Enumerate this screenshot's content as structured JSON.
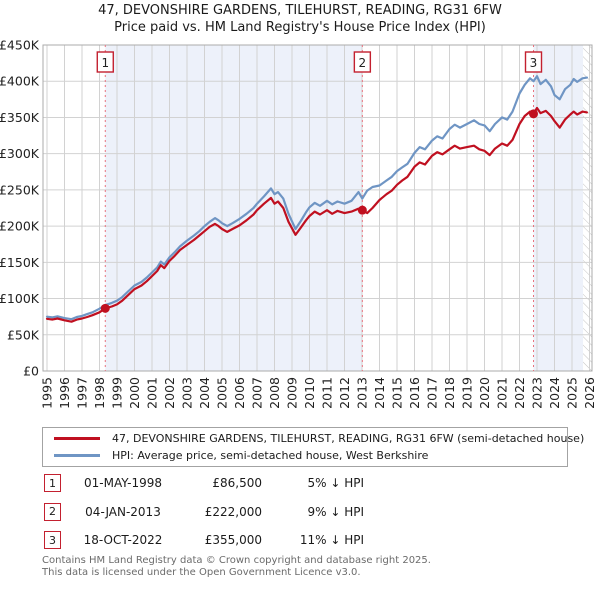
{
  "header": {
    "title_line1": "47, DEVONSHIRE GARDENS, TILEHURST, READING, RG31 6FW",
    "title_line2": "Price paid vs. HM Land Registry's House Price Index (HPI)"
  },
  "chart_data": {
    "type": "line",
    "title": "47, DEVONSHIRE GARDENS, TILEHURST, READING, RG31 6FW",
    "subtitle": "Price paid vs. HM Land Registry's House Price Index (HPI)",
    "x_axis": {
      "tick_years": [
        1995,
        1996,
        1997,
        1998,
        1999,
        2000,
        2001,
        2002,
        2003,
        2004,
        2005,
        2006,
        2007,
        2008,
        2009,
        2010,
        2011,
        2012,
        2013,
        2014,
        2015,
        2016,
        2017,
        2018,
        2019,
        2020,
        2021,
        2022,
        2023,
        2024,
        2025,
        2026
      ],
      "range": [
        1994.77,
        2026.14
      ]
    },
    "y_axis": {
      "tick_labels": [
        "£0",
        "£50K",
        "£100K",
        "£150K",
        "£200K",
        "£250K",
        "£300K",
        "£350K",
        "£400K",
        "£450K"
      ],
      "tick_values": [
        0,
        50,
        100,
        150,
        200,
        250,
        300,
        350,
        400,
        450
      ],
      "unit": "GBP thousands",
      "range": [
        0,
        450
      ],
      "grid": true
    },
    "legend_position": "bottom",
    "series": [
      {
        "id": "price-paid",
        "name": "47, DEVONSHIRE GARDENS, TILEHURST, READING, RG31 6FW (semi-detached house)",
        "color": "#c01020",
        "points": [
          [
            1995.0,
            72
          ],
          [
            1995.3,
            71
          ],
          [
            1995.6,
            72.5
          ],
          [
            1996.0,
            70
          ],
          [
            1996.4,
            68
          ],
          [
            1996.7,
            71
          ],
          [
            1997.0,
            72.5
          ],
          [
            1997.3,
            74.5
          ],
          [
            1997.6,
            77
          ],
          [
            1998.0,
            81
          ],
          [
            1998.33,
            86.5
          ],
          [
            1998.7,
            89
          ],
          [
            1999.0,
            92
          ],
          [
            1999.3,
            97
          ],
          [
            1999.6,
            104
          ],
          [
            2000.0,
            113
          ],
          [
            2000.4,
            118
          ],
          [
            2000.7,
            124
          ],
          [
            2001.0,
            131
          ],
          [
            2001.3,
            138
          ],
          [
            2001.5,
            146
          ],
          [
            2001.7,
            142
          ],
          [
            2002.0,
            152
          ],
          [
            2002.3,
            159
          ],
          [
            2002.6,
            167
          ],
          [
            2003.0,
            174
          ],
          [
            2003.4,
            181
          ],
          [
            2003.7,
            187
          ],
          [
            2004.0,
            193
          ],
          [
            2004.3,
            199
          ],
          [
            2004.6,
            203
          ],
          [
            2004.8,
            200
          ],
          [
            2005.0,
            196
          ],
          [
            2005.3,
            192
          ],
          [
            2005.6,
            196
          ],
          [
            2006.0,
            201
          ],
          [
            2006.4,
            208
          ],
          [
            2006.8,
            216
          ],
          [
            2007.0,
            222
          ],
          [
            2007.4,
            231
          ],
          [
            2007.8,
            239
          ],
          [
            2008.0,
            231
          ],
          [
            2008.2,
            234
          ],
          [
            2008.5,
            225
          ],
          [
            2008.8,
            206
          ],
          [
            2009.2,
            188
          ],
          [
            2009.5,
            198
          ],
          [
            2009.8,
            208
          ],
          [
            2010.0,
            214
          ],
          [
            2010.3,
            220
          ],
          [
            2010.6,
            216
          ],
          [
            2011.0,
            222
          ],
          [
            2011.3,
            217
          ],
          [
            2011.6,
            221
          ],
          [
            2012.0,
            218
          ],
          [
            2012.4,
            220
          ],
          [
            2012.8,
            224
          ],
          [
            2013.02,
            222
          ],
          [
            2013.3,
            218
          ],
          [
            2013.6,
            225
          ],
          [
            2014.0,
            236
          ],
          [
            2014.4,
            244
          ],
          [
            2014.7,
            249
          ],
          [
            2015.0,
            257
          ],
          [
            2015.3,
            263
          ],
          [
            2015.6,
            268
          ],
          [
            2016.0,
            282
          ],
          [
            2016.3,
            288
          ],
          [
            2016.6,
            285
          ],
          [
            2017.0,
            297
          ],
          [
            2017.3,
            302
          ],
          [
            2017.6,
            299
          ],
          [
            2018.0,
            306
          ],
          [
            2018.3,
            311
          ],
          [
            2018.6,
            307
          ],
          [
            2019.0,
            309
          ],
          [
            2019.4,
            311
          ],
          [
            2019.7,
            306
          ],
          [
            2020.0,
            304
          ],
          [
            2020.3,
            298
          ],
          [
            2020.6,
            307
          ],
          [
            2021.0,
            314
          ],
          [
            2021.3,
            311
          ],
          [
            2021.6,
            319
          ],
          [
            2022.0,
            341
          ],
          [
            2022.3,
            352
          ],
          [
            2022.6,
            358
          ],
          [
            2022.8,
            355
          ],
          [
            2023.0,
            363
          ],
          [
            2023.2,
            356
          ],
          [
            2023.5,
            359
          ],
          [
            2023.8,
            352
          ],
          [
            2024.0,
            345
          ],
          [
            2024.3,
            336
          ],
          [
            2024.6,
            347
          ],
          [
            2024.9,
            354
          ],
          [
            2025.1,
            358
          ],
          [
            2025.3,
            354
          ],
          [
            2025.6,
            358
          ],
          [
            2025.85,
            357
          ]
        ]
      },
      {
        "id": "hpi",
        "name": "HPI: Average price, semi-detached house, West Berkshire",
        "color": "#6f95c4",
        "points": [
          [
            1995.0,
            75
          ],
          [
            1995.3,
            74
          ],
          [
            1995.6,
            75.5
          ],
          [
            1996.0,
            73
          ],
          [
            1996.4,
            71.5
          ],
          [
            1996.7,
            74.5
          ],
          [
            1997.0,
            76
          ],
          [
            1997.3,
            78.5
          ],
          [
            1997.6,
            81
          ],
          [
            1998.0,
            86
          ],
          [
            1998.33,
            91
          ],
          [
            1998.7,
            94
          ],
          [
            1999.0,
            97
          ],
          [
            1999.3,
            102
          ],
          [
            1999.6,
            109
          ],
          [
            2000.0,
            118
          ],
          [
            2000.4,
            123
          ],
          [
            2000.7,
            129
          ],
          [
            2001.0,
            136
          ],
          [
            2001.3,
            143
          ],
          [
            2001.5,
            151
          ],
          [
            2001.7,
            147
          ],
          [
            2002.0,
            157
          ],
          [
            2002.3,
            164
          ],
          [
            2002.6,
            172
          ],
          [
            2003.0,
            180
          ],
          [
            2003.4,
            187
          ],
          [
            2003.7,
            193
          ],
          [
            2004.0,
            200
          ],
          [
            2004.3,
            206
          ],
          [
            2004.6,
            211
          ],
          [
            2004.8,
            208
          ],
          [
            2005.0,
            204
          ],
          [
            2005.3,
            200
          ],
          [
            2005.6,
            204
          ],
          [
            2006.0,
            210
          ],
          [
            2006.4,
            217
          ],
          [
            2006.8,
            225
          ],
          [
            2007.0,
            231
          ],
          [
            2007.4,
            241
          ],
          [
            2007.8,
            252
          ],
          [
            2008.0,
            244
          ],
          [
            2008.2,
            247
          ],
          [
            2008.5,
            238
          ],
          [
            2008.8,
            217
          ],
          [
            2009.2,
            196
          ],
          [
            2009.5,
            207
          ],
          [
            2009.8,
            219
          ],
          [
            2010.0,
            226
          ],
          [
            2010.3,
            232
          ],
          [
            2010.6,
            228
          ],
          [
            2011.0,
            235
          ],
          [
            2011.3,
            230
          ],
          [
            2011.6,
            234
          ],
          [
            2012.0,
            231
          ],
          [
            2012.4,
            235
          ],
          [
            2012.8,
            247
          ],
          [
            2013.02,
            238
          ],
          [
            2013.3,
            249
          ],
          [
            2013.6,
            254
          ],
          [
            2014.0,
            256
          ],
          [
            2014.4,
            263
          ],
          [
            2014.7,
            268
          ],
          [
            2015.0,
            276
          ],
          [
            2015.3,
            281
          ],
          [
            2015.6,
            286
          ],
          [
            2016.0,
            301
          ],
          [
            2016.3,
            309
          ],
          [
            2016.6,
            306
          ],
          [
            2017.0,
            318
          ],
          [
            2017.3,
            324
          ],
          [
            2017.6,
            321
          ],
          [
            2018.0,
            334
          ],
          [
            2018.3,
            340
          ],
          [
            2018.6,
            336
          ],
          [
            2019.0,
            341
          ],
          [
            2019.4,
            346
          ],
          [
            2019.7,
            341
          ],
          [
            2020.0,
            339
          ],
          [
            2020.3,
            331
          ],
          [
            2020.6,
            341
          ],
          [
            2021.0,
            350
          ],
          [
            2021.3,
            347
          ],
          [
            2021.6,
            358
          ],
          [
            2022.0,
            383
          ],
          [
            2022.3,
            395
          ],
          [
            2022.6,
            404
          ],
          [
            2022.8,
            400
          ],
          [
            2023.0,
            407
          ],
          [
            2023.2,
            396
          ],
          [
            2023.5,
            402
          ],
          [
            2023.8,
            393
          ],
          [
            2024.0,
            381
          ],
          [
            2024.3,
            375
          ],
          [
            2024.6,
            389
          ],
          [
            2024.9,
            395
          ],
          [
            2025.1,
            403
          ],
          [
            2025.3,
            399
          ],
          [
            2025.6,
            404
          ],
          [
            2025.85,
            405
          ]
        ]
      }
    ],
    "sales": [
      {
        "num": "1",
        "date": "01-MAY-1998",
        "price": "£86,500",
        "value_k": 86.5,
        "year": 1998.33,
        "vs_hpi": "5% ↓ HPI"
      },
      {
        "num": "2",
        "date": "04-JAN-2013",
        "price": "£222,000",
        "value_k": 222,
        "year": 2013.02,
        "vs_hpi": "9% ↓ HPI"
      },
      {
        "num": "3",
        "date": "18-OCT-2022",
        "price": "£355,000",
        "value_k": 355,
        "year": 2022.8,
        "vs_hpi": "11% ↓ HPI"
      }
    ],
    "shaded_ownership_periods": [
      [
        1998.33,
        2013.02
      ],
      [
        2022.8,
        2025.63
      ]
    ],
    "hatched_future_band": [
      2025.63,
      2026.14
    ],
    "style": {
      "shade_color": "#edf1fa",
      "grid_color": "#d2d2d2",
      "frame_color": "#ababab",
      "sale_line_color": "#e8737f",
      "marker_box_border": "#c3202f",
      "hatch_line_color": "#c4c4c4",
      "axis_text_color": "#222222"
    }
  },
  "footer": {
    "line1": "Contains HM Land Registry data © Crown copyright and database right 2025.",
    "line2": "This data is licensed under the Open Government Licence v3.0."
  }
}
